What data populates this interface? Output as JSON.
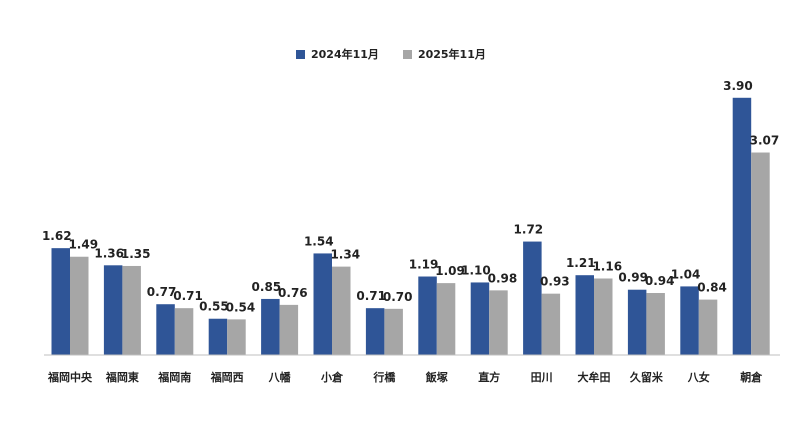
{
  "chart_data": {
    "type": "bar",
    "title": "",
    "xlabel": "",
    "ylabel": "",
    "categories": [
      "福岡中央",
      "福岡東",
      "福岡南",
      "福岡西",
      "八幡",
      "小倉",
      "行橋",
      "飯塚",
      "直方",
      "田川",
      "大牟田",
      "久留米",
      "八女",
      "朝倉"
    ],
    "series": [
      {
        "name": "2024年11月",
        "values": [
          1.62,
          1.36,
          0.77,
          0.55,
          0.85,
          1.54,
          0.71,
          1.19,
          1.1,
          1.72,
          1.21,
          0.99,
          1.04,
          3.9
        ],
        "color": "#2f5597"
      },
      {
        "name": "2025年11月",
        "values": [
          1.49,
          1.35,
          0.71,
          0.54,
          0.76,
          1.34,
          0.7,
          1.09,
          0.98,
          0.93,
          1.16,
          0.94,
          0.84,
          3.07
        ],
        "color": "#a6a6a6"
      }
    ],
    "value_labels": {
      "2024年11月": [
        "1.62",
        "1.36",
        "0.77",
        "0.55",
        "0.85",
        "1.54",
        "0.71",
        "1.19",
        "1.10",
        "1.72",
        "1.21",
        "0.99",
        "1.04",
        "3.90"
      ],
      "2025年11月": [
        "1.49",
        "1.35",
        "0.71",
        "0.54",
        "0.76",
        "1.34",
        "0.70",
        "1.09",
        "0.98",
        "0.93",
        "1.16",
        "0.94",
        "0.84",
        "3.07"
      ]
    },
    "ylim": [
      0,
      4.2
    ],
    "grid": false,
    "legend_position": "top-center",
    "axis_color": "#bfbfbf"
  }
}
